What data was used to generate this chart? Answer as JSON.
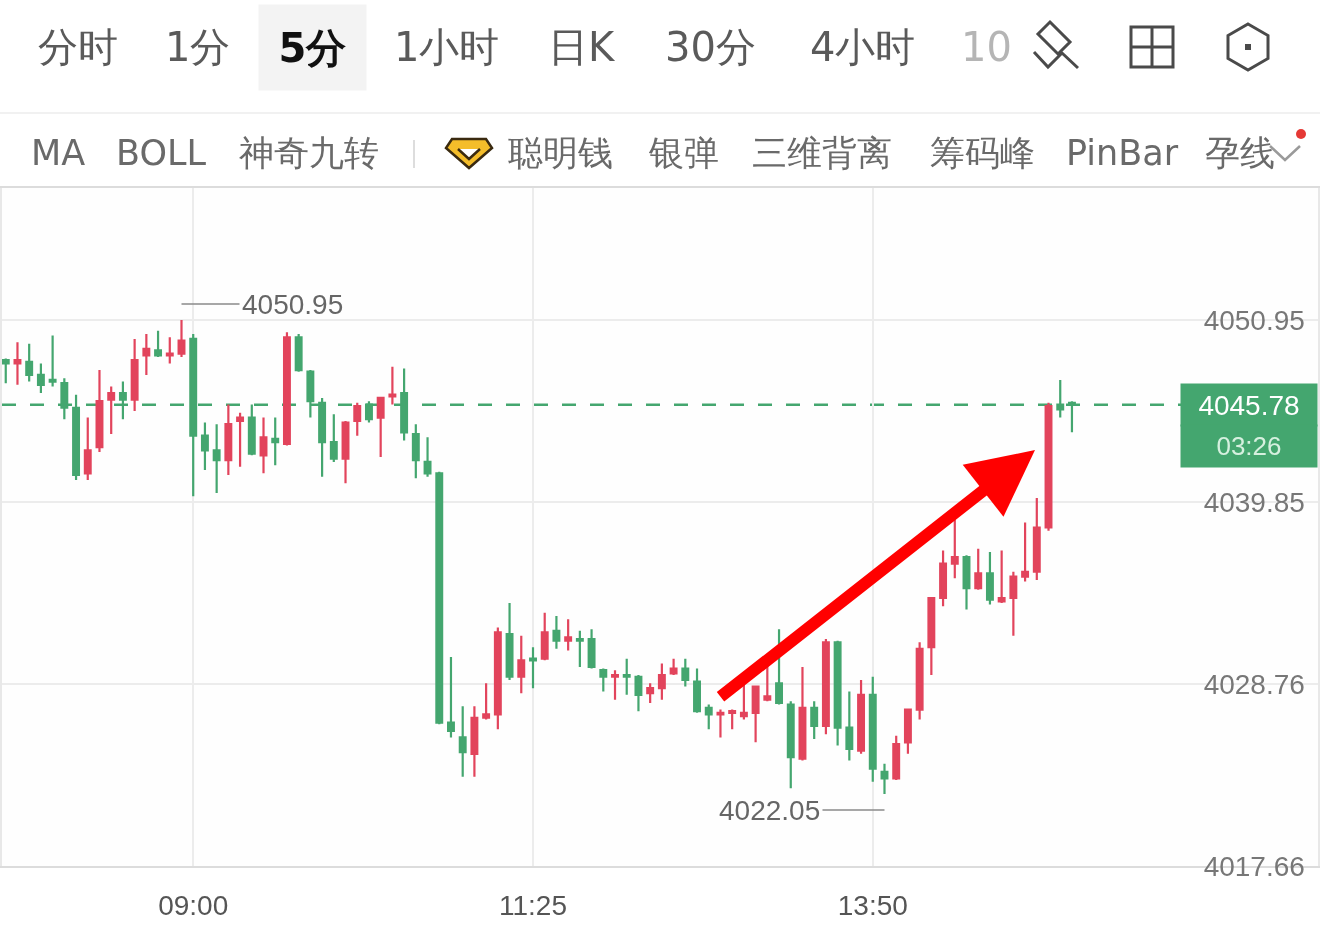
{
  "chart_data": {
    "type": "candlestick",
    "x": [
      7.6667,
      7.75,
      7.8333,
      7.9167,
      8.0,
      8.0833,
      8.1667,
      8.25,
      8.3333,
      8.4167,
      8.5,
      8.5833,
      8.6667,
      8.75,
      8.8333,
      8.9167,
      9.0,
      9.0833,
      9.1667,
      9.25,
      9.3333,
      9.4167,
      9.5,
      9.5833,
      9.6667,
      9.75,
      9.8333,
      9.9167,
      10.0,
      10.0833,
      10.1667,
      10.25,
      10.3333,
      10.4167,
      10.5,
      10.5833,
      10.6667,
      10.75,
      10.8333,
      10.9167,
      11.0,
      11.0833,
      11.1667,
      11.25,
      11.3333,
      11.4167,
      11.5,
      11.5833,
      11.6667,
      11.75,
      11.8333,
      11.9167,
      12.0,
      12.0833,
      12.1667,
      12.25,
      12.3333,
      12.4167,
      12.5,
      12.5833,
      12.6667,
      12.75,
      12.8333,
      12.9167,
      13.0,
      13.0833,
      13.1667,
      13.25,
      13.3333,
      13.4167,
      13.5,
      13.5833,
      13.6667,
      13.75,
      13.8333,
      13.9167,
      14.0,
      14.0833,
      14.1667,
      14.25,
      14.3333,
      14.4167,
      14.5,
      14.5833,
      14.6667,
      14.75,
      14.8333,
      14.9167,
      15.0,
      15.0833,
      15.1667,
      15.25
    ],
    "ohlc": [
      [
        4048.5,
        4048.6,
        4047.1,
        4048.3
      ],
      [
        4048.3,
        4049.6,
        4047.0,
        4048.5
      ],
      [
        4048.4,
        4049.5,
        4047.2,
        4047.6
      ],
      [
        4047.6,
        4048.3,
        4046.5,
        4047.0
      ],
      [
        4047.3,
        4050.0,
        4046.9,
        4047.2
      ],
      [
        4047.1,
        4047.4,
        4044.9,
        4045.6
      ],
      [
        4045.6,
        4046.4,
        4041.2,
        4041.5
      ],
      [
        4041.6,
        4045.0,
        4041.2,
        4043.0
      ],
      [
        4043.2,
        4047.9,
        4042.9,
        4046.0
      ],
      [
        4046.1,
        4046.9,
        4044.0,
        4046.5
      ],
      [
        4046.5,
        4047.2,
        4044.9,
        4046.1
      ],
      [
        4046.1,
        4049.8,
        4045.4,
        4048.5
      ],
      [
        4048.8,
        4050.1,
        4047.6,
        4049.2
      ],
      [
        4049.1,
        4050.3,
        4048.7,
        4048.8
      ],
      [
        4048.8,
        4049.9,
        4048.3,
        4048.9
      ],
      [
        4048.9,
        4050.95,
        4048.7,
        4049.7
      ],
      [
        4049.8,
        4050.1,
        4040.2,
        4043.9
      ],
      [
        4043.9,
        4044.7,
        4041.8,
        4043.0
      ],
      [
        4043.0,
        4044.6,
        4040.4,
        4042.4
      ],
      [
        4042.4,
        4045.8,
        4041.5,
        4044.6
      ],
      [
        4044.8,
        4045.3,
        4042.0,
        4045.0
      ],
      [
        4045.0,
        4045.8,
        4042.7,
        4042.8
      ],
      [
        4042.7,
        4045.0,
        4041.6,
        4043.8
      ],
      [
        4043.7,
        4045.0,
        4042.1,
        4043.5
      ],
      [
        4043.4,
        4050.2,
        4043.3,
        4049.9
      ],
      [
        4049.9,
        4050.1,
        4047.8,
        4047.9
      ],
      [
        4047.8,
        4047.9,
        4045.0,
        4046.0
      ],
      [
        4045.9,
        4046.2,
        4041.4,
        4043.5
      ],
      [
        4043.5,
        4045.2,
        4042.3,
        4042.5
      ],
      [
        4042.5,
        4044.8,
        4041.0,
        4044.7
      ],
      [
        4044.8,
        4045.9,
        4043.9,
        4045.7
      ],
      [
        4045.8,
        4046.0,
        4044.7,
        4044.9
      ],
      [
        4045.0,
        4046.2,
        4042.6,
        4046.2
      ],
      [
        4046.3,
        4048.1,
        4045.8,
        4046.4
      ],
      [
        4046.5,
        4048.0,
        4043.6,
        4044.1
      ],
      [
        4044.0,
        4044.6,
        4041.3,
        4042.4
      ],
      [
        4042.3,
        4043.8,
        4041.4,
        4041.6
      ],
      [
        4041.6,
        4041.7,
        4026.3,
        4026.4
      ],
      [
        4026.4,
        4030.4,
        4025.5,
        4025.9
      ],
      [
        4025.5,
        4027.4,
        4023.1,
        4024.6
      ],
      [
        4024.5,
        4027.4,
        4023.1,
        4026.7
      ],
      [
        4026.7,
        4028.8,
        4026.6,
        4026.9
      ],
      [
        4026.9,
        4032.2,
        4026.0,
        4031.9
      ],
      [
        4031.8,
        4033.7,
        4029.0,
        4029.2
      ],
      [
        4029.2,
        4031.7,
        4028.2,
        4030.2
      ],
      [
        4030.3,
        4031.0,
        4028.5,
        4030.2
      ],
      [
        4030.3,
        4033.1,
        4030.2,
        4031.9
      ],
      [
        4032.0,
        4032.9,
        4030.9,
        4031.4
      ],
      [
        4031.4,
        4032.7,
        4030.8,
        4031.6
      ],
      [
        4031.5,
        4032.0,
        4029.8,
        4031.4
      ],
      [
        4031.5,
        4032.1,
        4029.7,
        4029.8
      ],
      [
        4029.6,
        4029.7,
        4028.3,
        4029.2
      ],
      [
        4029.2,
        4029.6,
        4027.8,
        4029.3
      ],
      [
        4029.3,
        4030.3,
        4028.1,
        4029.2
      ],
      [
        4029.2,
        4029.3,
        4027.1,
        4028.1
      ],
      [
        4028.2,
        4028.8,
        4027.6,
        4028.5
      ],
      [
        4028.5,
        4030.0,
        4027.8,
        4029.3
      ],
      [
        4029.4,
        4030.3,
        4029.3,
        4029.7
      ],
      [
        4029.7,
        4030.3,
        4028.6,
        4029.0
      ],
      [
        4028.9,
        4029.7,
        4027.0,
        4027.1
      ],
      [
        4027.3,
        4027.5,
        4026.0,
        4026.9
      ],
      [
        4026.9,
        4027.2,
        4025.5,
        4027.0
      ],
      [
        4027.0,
        4027.2,
        4026.0,
        4027.1
      ],
      [
        4026.8,
        4028.7,
        4026.6,
        4027.0
      ],
      [
        4027.0,
        4028.6,
        4025.2,
        4028.6
      ],
      [
        4027.8,
        4029.9,
        4027.7,
        4028.0
      ],
      [
        4028.8,
        4032.1,
        4027.5,
        4027.6
      ],
      [
        4027.5,
        4027.7,
        4022.4,
        4024.3
      ],
      [
        4024.2,
        4029.8,
        4024.1,
        4027.3
      ],
      [
        4027.3,
        4027.7,
        4025.4,
        4026.2
      ],
      [
        4026.2,
        4031.5,
        4025.7,
        4031.3
      ],
      [
        4031.3,
        4031.4,
        4025.0,
        4026.1
      ],
      [
        4026.1,
        4028.3,
        4024.1,
        4024.8
      ],
      [
        4024.7,
        4029.0,
        4024.5,
        4028.1
      ],
      [
        4028.1,
        4029.2,
        4022.8,
        4023.6
      ],
      [
        4023.4,
        4023.9,
        4022.05,
        4023.0
      ],
      [
        4023.0,
        4025.6,
        4022.9,
        4025.1
      ],
      [
        4025.2,
        4027.2,
        4024.5,
        4027.2
      ],
      [
        4027.2,
        4031.3,
        4026.6,
        4030.9
      ],
      [
        4031.0,
        4034.0,
        4029.3,
        4034.0
      ],
      [
        4034.0,
        4036.9,
        4033.5,
        4036.1
      ],
      [
        4036.1,
        4038.8,
        4035.2,
        4036.5
      ],
      [
        4036.5,
        4036.6,
        4033.3,
        4034.6
      ],
      [
        4034.6,
        4037.0,
        4034.5,
        4035.5
      ],
      [
        4035.5,
        4036.8,
        4033.6,
        4033.9
      ],
      [
        4033.8,
        4036.9,
        4033.7,
        4034.0
      ],
      [
        4034.0,
        4035.6,
        4031.7,
        4035.3
      ],
      [
        4035.3,
        4038.6,
        4035.0,
        4035.6
      ],
      [
        4035.6,
        4040.1,
        4035.1,
        4038.3
      ],
      [
        4038.3,
        4045.9,
        4038.1,
        4045.7
      ],
      [
        4045.8,
        4047.3,
        4045.0,
        4045.5
      ],
      [
        4045.9,
        4046.0,
        4044.1,
        4045.78
      ]
    ],
    "colors": [
      "#44a66f",
      "#e2445c",
      "#44a66f",
      "#44a66f",
      "#44a66f",
      "#44a66f",
      "#44a66f",
      "#e2445c",
      "#e2445c",
      "#e2445c",
      "#44a66f",
      "#e2445c",
      "#e2445c",
      "#44a66f",
      "#e2445c",
      "#e2445c",
      "#44a66f",
      "#44a66f",
      "#44a66f",
      "#e2445c",
      "#e2445c",
      "#44a66f",
      "#e2445c",
      "#44a66f",
      "#e2445c",
      "#44a66f",
      "#44a66f",
      "#44a66f",
      "#44a66f",
      "#e2445c",
      "#e2445c",
      "#44a66f",
      "#e2445c",
      "#e2445c",
      "#44a66f",
      "#44a66f",
      "#44a66f",
      "#44a66f",
      "#44a66f",
      "#44a66f",
      "#e2445c",
      "#e2445c",
      "#e2445c",
      "#44a66f",
      "#e2445c",
      "#44a66f",
      "#e2445c",
      "#44a66f",
      "#e2445c",
      "#44a66f",
      "#44a66f",
      "#44a66f",
      "#e2445c",
      "#44a66f",
      "#44a66f",
      "#e2445c",
      "#e2445c",
      "#e2445c",
      "#44a66f",
      "#44a66f",
      "#44a66f",
      "#e2445c",
      "#e2445c",
      "#e2445c",
      "#e2445c",
      "#e2445c",
      "#44a66f",
      "#44a66f",
      "#e2445c",
      "#44a66f",
      "#e2445c",
      "#44a66f",
      "#44a66f",
      "#e2445c",
      "#44a66f",
      "#44a66f",
      "#e2445c",
      "#e2445c",
      "#e2445c",
      "#e2445c",
      "#e2445c",
      "#e2445c",
      "#44a66f",
      "#e2445c",
      "#44a66f",
      "#e2445c",
      "#e2445c",
      "#e2445c",
      "#e2445c",
      "#e2445c",
      "#44a66f",
      "#44a66f"
    ],
    "xlim": [
      7.64,
      17.0
    ],
    "xticks": [
      {
        "value": 9,
        "label": "09:00"
      },
      {
        "value": 11.4167,
        "label": "11:25"
      },
      {
        "value": 13.8333,
        "label": "13:50"
      }
    ],
    "ylim": [
      4017.66,
      4059.0
    ],
    "yticks": [
      {
        "value": 4059.0,
        "label": null
      },
      4050.95,
      4039.85,
      4028.76,
      4017.66
    ],
    "grid": true,
    "ref_lines": [
      {
        "axis": "y",
        "value": 4045.78,
        "label": "4045.78",
        "color": "#44a66f",
        "line_style": "dashed"
      }
    ],
    "annotations": [
      "分时",
      "1分",
      "5分",
      "1小时",
      "日K",
      "30分",
      "4小时",
      "10",
      "MA",
      "BOLL",
      "神奇九转",
      "聪明钱",
      "银弹",
      "三维背离",
      "筹码峰",
      "PinBar",
      "孕线",
      "03:26",
      {
        "text": "4050.95",
        "x": 8.9167,
        "y": 4050.95
      },
      {
        "text": "4022.05",
        "x": 13.9167,
        "y": 4022.05
      }
    ]
  }
}
